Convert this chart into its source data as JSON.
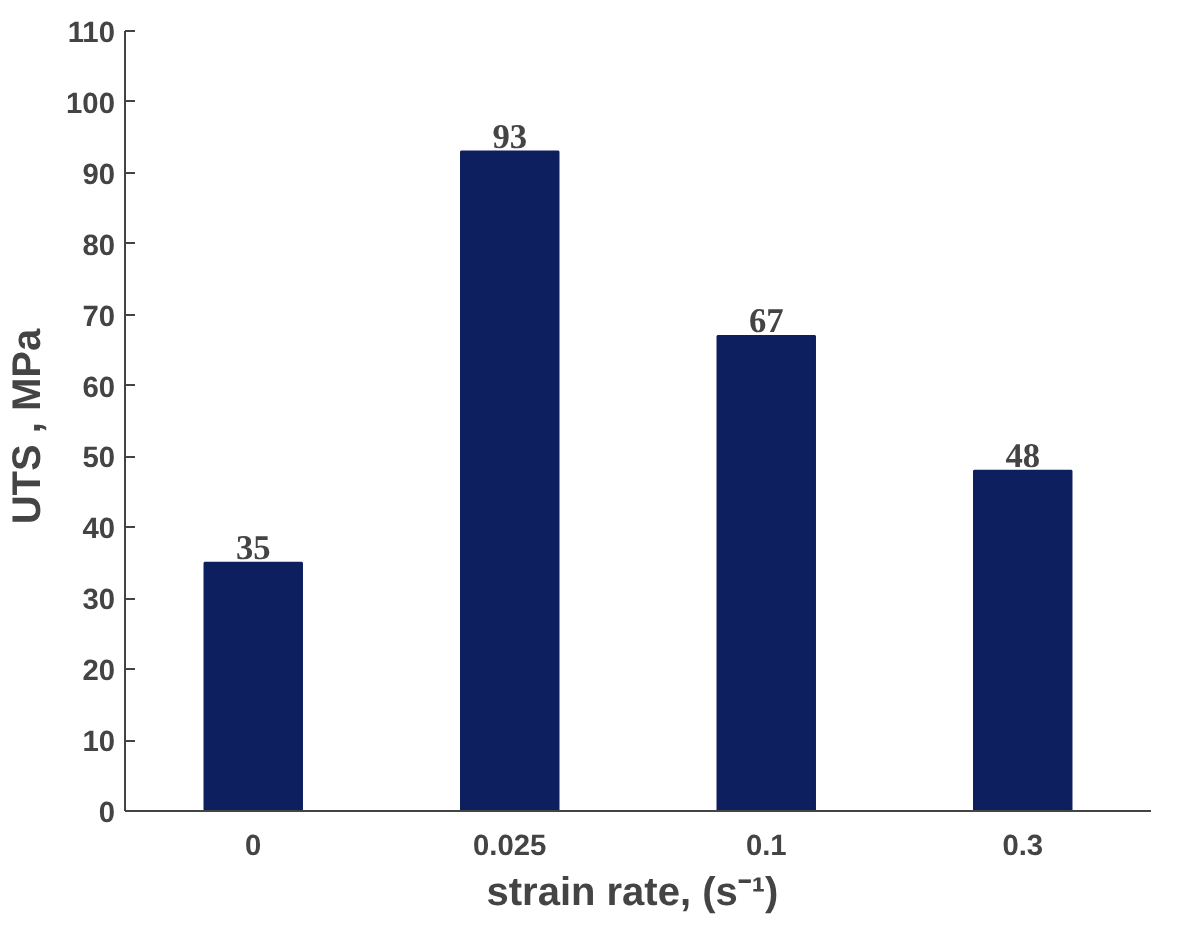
{
  "chart_data": {
    "type": "bar",
    "xlabel": "strain  rate, (s⁻¹)",
    "ylabel": "UTS ,  MPa",
    "categories": [
      "0",
      "0.025",
      "0.1",
      "0.3"
    ],
    "values": [
      35,
      93,
      67,
      48
    ],
    "color": "#0d1f5e",
    "ylim": [
      0,
      110
    ],
    "yticks": [
      0,
      10,
      20,
      30,
      40,
      50,
      60,
      70,
      80,
      90,
      100,
      110
    ],
    "grid": false,
    "data_labels": true
  }
}
